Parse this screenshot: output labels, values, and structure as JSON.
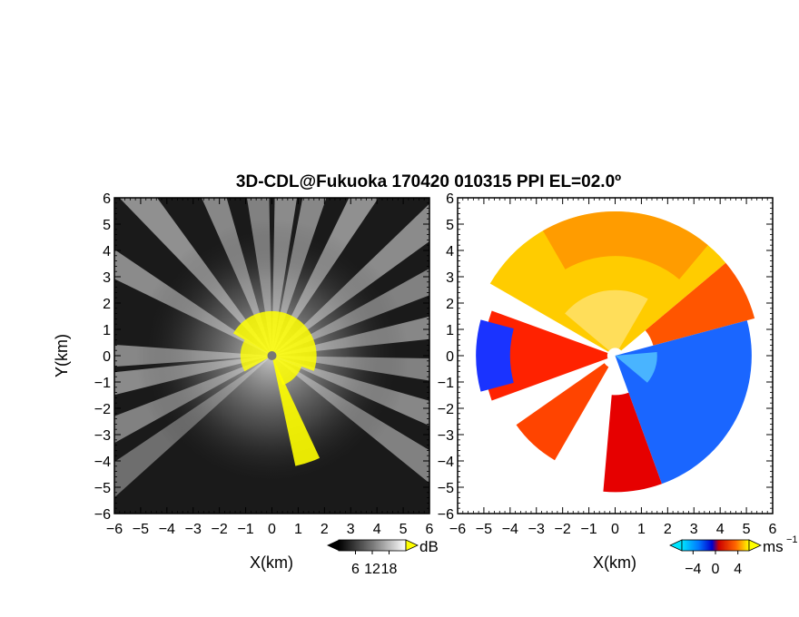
{
  "title": "3D-CDL@Fukuoka 170420 010315 PPI EL=02.0º",
  "chart_data": [
    {
      "type": "heatmap",
      "panel": "reflectivity",
      "xlabel": "X(km)",
      "ylabel": "Y(km)",
      "xlim": [
        -6,
        6
      ],
      "ylim": [
        -6,
        6
      ],
      "xticks": [
        "−6",
        "−5",
        "−4",
        "−3",
        "−2",
        "−1",
        "0",
        "1",
        "2",
        "3",
        "4",
        "5",
        "6"
      ],
      "yticks": [
        "6",
        "5",
        "4",
        "3",
        "2",
        "1",
        "0",
        "−1",
        "−2",
        "−3",
        "−4",
        "−5",
        "−6"
      ],
      "grid": false,
      "colorbar": {
        "unit": "dB",
        "ticks": [
          "6",
          "12",
          "18"
        ],
        "range": [
          0,
          24
        ],
        "colormap": "grayscale"
      },
      "highlight_color": "#ffff00",
      "beams": [
        {
          "az": 30,
          "v": 0.85
        },
        {
          "az": 50,
          "v": 0.8
        },
        {
          "az": 65,
          "v": 0.7
        },
        {
          "az": 80,
          "v": 0.75
        },
        {
          "az": 95,
          "v": 0.7
        },
        {
          "az": 110,
          "v": 0.75
        },
        {
          "az": 125,
          "v": 0.7
        },
        {
          "az": 300,
          "v": 0.8
        },
        {
          "az": 320,
          "v": 0.85
        },
        {
          "az": 340,
          "v": 0.75
        },
        {
          "az": 355,
          "v": 0.7
        },
        {
          "az": 5,
          "v": 0.8
        },
        {
          "az": 15,
          "v": 0.75
        },
        {
          "az": 245,
          "v": 0.7
        },
        {
          "az": 260,
          "v": 0.8
        },
        {
          "az": 270,
          "v": 0.75
        },
        {
          "az": 232,
          "v": 0.5
        }
      ]
    },
    {
      "type": "heatmap",
      "panel": "doppler-velocity",
      "xlabel": "X(km)",
      "xlim": [
        -6,
        6
      ],
      "ylim": [
        -6,
        6
      ],
      "xticks": [
        "−6",
        "−5",
        "−4",
        "−3",
        "−2",
        "−1",
        "0",
        "1",
        "2",
        "3",
        "4",
        "5",
        "6"
      ],
      "yticks": [
        "6",
        "5",
        "4",
        "3",
        "2",
        "1",
        "0",
        "−1",
        "−2",
        "−3",
        "−4",
        "−5",
        "−6"
      ],
      "grid": false,
      "colorbar": {
        "unit": "ms",
        "unit_exponent": "−1",
        "ticks": [
          "−4",
          "0",
          "4"
        ],
        "range": [
          -6,
          6
        ],
        "colormap": "blue-cyan-red-yellow"
      },
      "regions": [
        {
          "name": "north-sector",
          "az_from": 300,
          "az_to": 50,
          "range_km": [
            0.3,
            5.5
          ],
          "color": "#ffcc00"
        },
        {
          "name": "northeast-sector",
          "az_from": 50,
          "az_to": 75,
          "range_km": [
            1.5,
            5.5
          ],
          "color": "#ff5500"
        },
        {
          "name": "east-sector",
          "az_from": 75,
          "az_to": 160,
          "range_km": [
            0,
            5.2
          ],
          "color": "#1a66ff"
        },
        {
          "name": "south-sector",
          "az_from": 160,
          "az_to": 185,
          "range_km": [
            1.5,
            5.2
          ],
          "color": "#e60000"
        },
        {
          "name": "southwest-sector",
          "az_from": 210,
          "az_to": 235,
          "range_km": [
            0.5,
            4.6
          ],
          "color": "#ff4400"
        },
        {
          "name": "west-sector",
          "az_from": 250,
          "az_to": 290,
          "range_km": [
            0.3,
            5.0
          ],
          "color": "#ff2200"
        },
        {
          "name": "west-edge",
          "az_from": 255,
          "az_to": 285,
          "range_km": [
            4.0,
            5.3
          ],
          "color": "#1a33ff"
        }
      ]
    }
  ]
}
